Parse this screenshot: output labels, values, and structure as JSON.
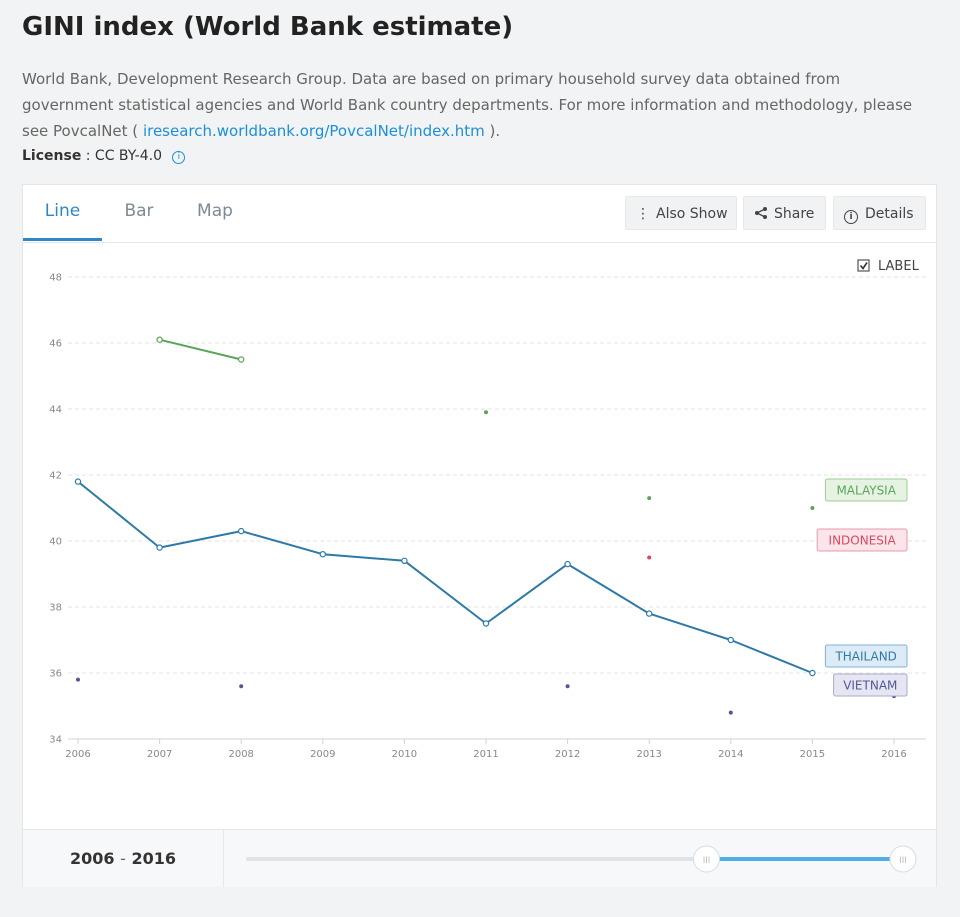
{
  "header": {
    "title": "GINI index (World Bank estimate)",
    "description": "World Bank, Development Research Group. Data are based on primary household survey data obtained from government statistical agencies and World Bank country departments. For more information and methodology, please see PovcalNet (",
    "link_text": "iresearch.worldbank.org/PovcalNet/index.htm",
    "description_end": " ).",
    "license_label": "License",
    "license_value": ": CC BY-4.0"
  },
  "tabs": [
    {
      "label": "Line",
      "active": true
    },
    {
      "label": "Bar",
      "active": false
    },
    {
      "label": "Map",
      "active": false
    }
  ],
  "toolbar": {
    "also_show": "Also Show",
    "share": "Share",
    "details": "Details"
  },
  "label_toggle": {
    "text": "LABEL",
    "checked": true
  },
  "footer": {
    "range_start": "2006",
    "range_sep": "-",
    "range_end": "2016",
    "slider_start_fraction": 0.7,
    "slider_end_fraction": 1.0
  },
  "chart_data": {
    "type": "line",
    "title": "",
    "xlabel": "",
    "ylabel": "",
    "x": [
      2006,
      2007,
      2008,
      2009,
      2010,
      2011,
      2012,
      2013,
      2014,
      2015,
      2016
    ],
    "x_tick_labels": [
      "2006",
      "2007",
      "2008",
      "2009",
      "2010",
      "2011",
      "2012",
      "2013",
      "2014",
      "2015",
      "2016"
    ],
    "ylim": [
      34,
      48
    ],
    "y_ticks": [
      34,
      36,
      38,
      40,
      42,
      44,
      46,
      48
    ],
    "grid": true,
    "legend": "direct labels at right",
    "series": [
      {
        "name": "THAILAND",
        "color": "#2e7aa6",
        "label_bg": "#dcebf6",
        "label_border": "#7eb2d8",
        "values": [
          41.8,
          39.8,
          40.3,
          39.6,
          39.4,
          37.5,
          39.3,
          37.8,
          37.0,
          36.0,
          null
        ]
      },
      {
        "name": "MALAYSIA",
        "color": "#5aa55a",
        "label_bg": "#e6f3e3",
        "label_border": "#9ccc95",
        "values": [
          null,
          46.1,
          45.5,
          null,
          null,
          43.9,
          null,
          41.3,
          null,
          41.0,
          null
        ]
      },
      {
        "name": "INDONESIA",
        "color": "#d9485f",
        "label_bg": "#fbe4ea",
        "label_border": "#e79aae",
        "values": [
          null,
          null,
          null,
          null,
          null,
          null,
          null,
          39.5,
          null,
          null,
          null
        ]
      },
      {
        "name": "VIETNAM",
        "color": "#55559a",
        "label_bg": "#e6e6f2",
        "label_border": "#a9a9cf",
        "values": [
          35.8,
          null,
          35.6,
          null,
          null,
          null,
          35.6,
          null,
          34.8,
          null,
          35.3
        ]
      }
    ]
  }
}
